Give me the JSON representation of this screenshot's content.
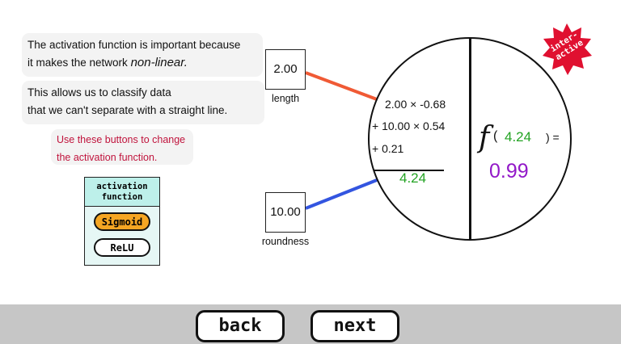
{
  "explanation": {
    "line1": "The activation function is important because",
    "line2_prefix": "it makes the network ",
    "line2_em": "non-linear.",
    "line3": "This allows us to classify data",
    "line4": "that we can't separate with a straight line."
  },
  "hint": {
    "line1": "Use these buttons to change",
    "line2": "the activation function."
  },
  "activation_panel": {
    "title_line1": "activation",
    "title_line2": "function",
    "options": [
      "Sigmoid",
      "ReLU"
    ],
    "selected": "Sigmoid"
  },
  "inputs": [
    {
      "value": "2.00",
      "label": "length",
      "connection_color": "#f05a35"
    },
    {
      "value": "10.00",
      "label": "roundness",
      "connection_color": "#3355e0"
    }
  ],
  "neuron": {
    "formula_line1": "2.00 × -0.68",
    "formula_line2": "+ 10.00 × 0.54",
    "formula_line3": "+ 0.21",
    "weighted_sum": "4.24",
    "function_symbol": "f",
    "function_open": "(",
    "function_arg": "4.24",
    "function_close": ") =",
    "output": "0.99"
  },
  "badge": {
    "line1": "inter-",
    "line2": "active",
    "color": "#e01030"
  },
  "nav": {
    "back": "back",
    "next": "next"
  },
  "colors": {
    "sum_green": "#23a323",
    "output_purple": "#9218c8",
    "hint_red": "#c0133c"
  }
}
